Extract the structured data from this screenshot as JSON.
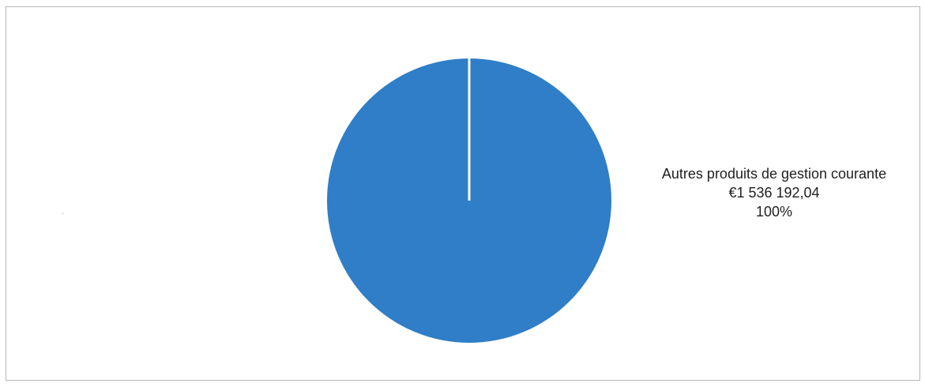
{
  "chart_data": {
    "type": "pie",
    "title": "",
    "slices": [
      {
        "label": "Autres produits de gestion courante",
        "value": 1536192.04,
        "value_text": "€1 536 192,04",
        "percent": 100,
        "percent_text": "100%",
        "color": "#2f7ec7"
      }
    ],
    "data_label_position": "right",
    "legend": "none",
    "separator_color": "#ffffff"
  }
}
